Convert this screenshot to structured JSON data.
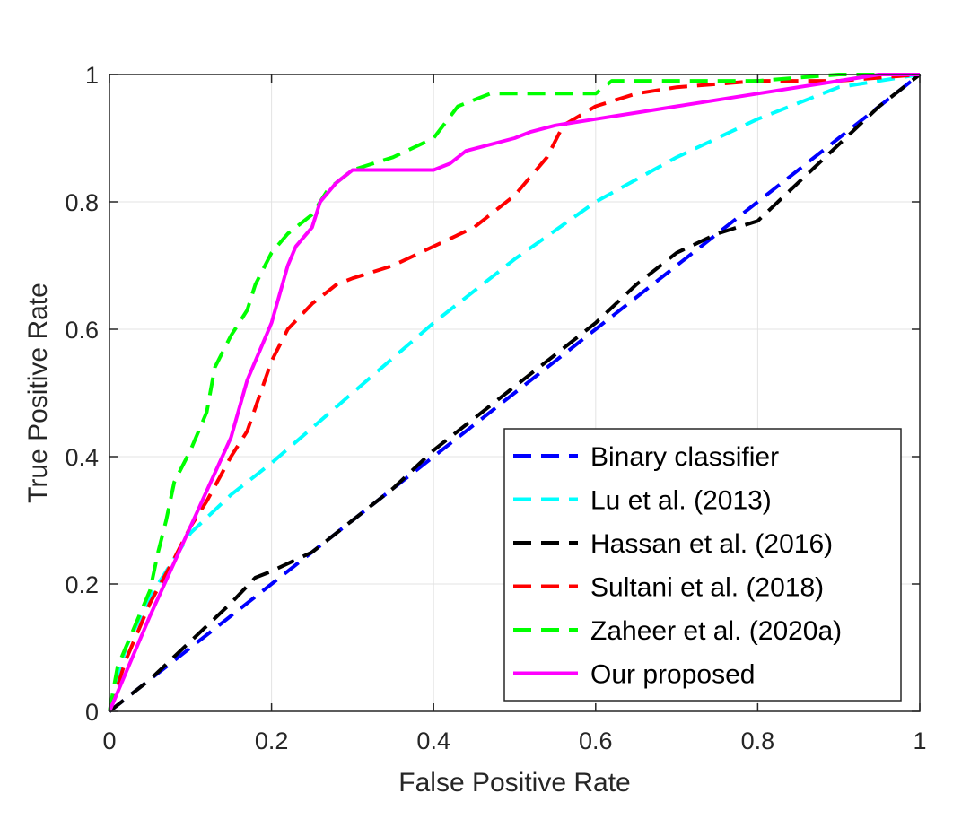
{
  "chart_data": {
    "type": "line",
    "title": "",
    "xlabel": "False Positive Rate",
    "ylabel": "True Positive Rate",
    "xlim": [
      0,
      1
    ],
    "ylim": [
      0,
      1
    ],
    "xticks": [
      "0",
      "0.2",
      "0.4",
      "0.6",
      "0.8",
      "1"
    ],
    "yticks": [
      "0",
      "0.2",
      "0.4",
      "0.6",
      "0.8",
      "1"
    ],
    "grid": true,
    "legend_position": "bottom-right",
    "series": [
      {
        "name": "Binary classifier",
        "color": "#0000ff",
        "style": "dashed",
        "x": [
          0,
          0.1,
          0.2,
          0.3,
          0.4,
          0.5,
          0.6,
          0.7,
          0.8,
          0.9,
          1.0
        ],
        "y": [
          0,
          0.1,
          0.2,
          0.3,
          0.4,
          0.5,
          0.6,
          0.7,
          0.8,
          0.9,
          1.0
        ]
      },
      {
        "name": "Lu et al. (2013)",
        "color": "#00ffff",
        "style": "dashed",
        "x": [
          0,
          0.02,
          0.05,
          0.1,
          0.15,
          0.2,
          0.3,
          0.4,
          0.5,
          0.6,
          0.7,
          0.8,
          0.9,
          1.0
        ],
        "y": [
          0,
          0.1,
          0.18,
          0.28,
          0.34,
          0.39,
          0.5,
          0.61,
          0.71,
          0.8,
          0.87,
          0.93,
          0.98,
          1.0
        ]
      },
      {
        "name": "Hassan et al. (2016)",
        "color": "#000000",
        "style": "dashed",
        "x": [
          0,
          0.05,
          0.1,
          0.15,
          0.18,
          0.2,
          0.25,
          0.3,
          0.35,
          0.4,
          0.45,
          0.5,
          0.55,
          0.6,
          0.65,
          0.7,
          0.75,
          0.8,
          0.85,
          0.9,
          0.95,
          1.0
        ],
        "y": [
          0,
          0.05,
          0.11,
          0.17,
          0.21,
          0.22,
          0.25,
          0.3,
          0.35,
          0.41,
          0.46,
          0.51,
          0.56,
          0.61,
          0.67,
          0.72,
          0.75,
          0.77,
          0.83,
          0.89,
          0.95,
          1.0
        ]
      },
      {
        "name": "Sultani et al. (2018)",
        "color": "#ff0000",
        "style": "dashed",
        "x": [
          0,
          0.02,
          0.05,
          0.08,
          0.1,
          0.12,
          0.15,
          0.17,
          0.2,
          0.22,
          0.25,
          0.28,
          0.3,
          0.35,
          0.4,
          0.45,
          0.5,
          0.54,
          0.56,
          0.6,
          0.65,
          0.7,
          0.8,
          0.9,
          1.0
        ],
        "y": [
          0,
          0.08,
          0.17,
          0.24,
          0.29,
          0.33,
          0.4,
          0.44,
          0.55,
          0.6,
          0.64,
          0.67,
          0.68,
          0.7,
          0.73,
          0.76,
          0.81,
          0.87,
          0.92,
          0.95,
          0.97,
          0.98,
          0.99,
          0.99,
          1.0
        ]
      },
      {
        "name": "Zaheer et al. (2020a)",
        "color": "#00ff00",
        "style": "dashed",
        "x": [
          0,
          0.01,
          0.03,
          0.05,
          0.06,
          0.07,
          0.08,
          0.1,
          0.12,
          0.13,
          0.15,
          0.17,
          0.18,
          0.2,
          0.22,
          0.25,
          0.27,
          0.3,
          0.35,
          0.4,
          0.43,
          0.47,
          0.6,
          0.62,
          0.8,
          0.9,
          1.0
        ],
        "y": [
          0,
          0.07,
          0.13,
          0.19,
          0.25,
          0.3,
          0.36,
          0.41,
          0.47,
          0.54,
          0.59,
          0.63,
          0.67,
          0.72,
          0.75,
          0.78,
          0.82,
          0.85,
          0.87,
          0.9,
          0.95,
          0.97,
          0.97,
          0.99,
          0.99,
          1.0,
          1.0
        ]
      },
      {
        "name": "Our proposed",
        "color": "#ff00ff",
        "style": "solid",
        "x": [
          0,
          0.05,
          0.1,
          0.15,
          0.17,
          0.19,
          0.2,
          0.22,
          0.23,
          0.25,
          0.26,
          0.28,
          0.3,
          0.32,
          0.4,
          0.42,
          0.44,
          0.5,
          0.52,
          0.55,
          0.6,
          0.65,
          0.7,
          0.8,
          0.9,
          0.95,
          1.0
        ],
        "y": [
          0,
          0.15,
          0.29,
          0.43,
          0.52,
          0.58,
          0.61,
          0.7,
          0.73,
          0.76,
          0.8,
          0.83,
          0.85,
          0.85,
          0.85,
          0.86,
          0.88,
          0.9,
          0.91,
          0.92,
          0.93,
          0.94,
          0.95,
          0.97,
          0.99,
          1.0,
          1.0
        ]
      }
    ]
  }
}
